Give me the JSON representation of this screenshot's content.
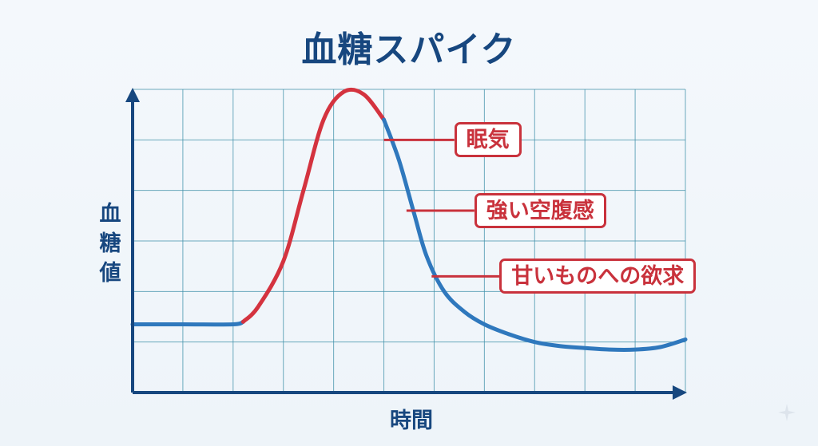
{
  "chart_data": {
    "type": "line",
    "title": "血糖スパイク",
    "ylabel": "血糖値",
    "xlabel": "時間",
    "grid": true,
    "axis_ticks": false,
    "series": [
      {
        "x": [
          0,
          1,
          2,
          2.2,
          2.5,
          3,
          3.4,
          3.8,
          4.2,
          4.6,
          5,
          5.3,
          5.6,
          5.85,
          6.2,
          6.6,
          7,
          7.5,
          8,
          8.5,
          9,
          9.5,
          10,
          10.5,
          11
        ],
        "y": [
          1.35,
          1.35,
          1.35,
          1.4,
          1.7,
          2.6,
          4.0,
          5.4,
          5.95,
          5.9,
          5.4,
          4.6,
          3.55,
          2.7,
          2.0,
          1.6,
          1.35,
          1.15,
          1.0,
          0.92,
          0.88,
          0.85,
          0.85,
          0.9,
          1.05
        ],
        "segments": [
          {
            "from_x": 0,
            "to_x": 2.2,
            "color": "#2f78bd"
          },
          {
            "from_x": 2.2,
            "to_x": 5.0,
            "color": "#d4333f"
          },
          {
            "from_x": 5.0,
            "to_x": 11,
            "color": "#2f78bd"
          }
        ]
      }
    ],
    "xlim": [
      0,
      11
    ],
    "ylim": [
      0,
      6
    ],
    "annotations": [
      {
        "text": "眠気",
        "x": 6.4,
        "y": 5.0
      },
      {
        "text": "強い空腹感",
        "x": 6.8,
        "y": 3.6
      },
      {
        "text": "甘いものへの欲求",
        "x": 7.3,
        "y": 2.3
      }
    ],
    "annotation_anchors": [
      {
        "x": 5.0,
        "y": 5.0
      },
      {
        "x": 5.45,
        "y": 3.6
      },
      {
        "x": 5.95,
        "y": 2.3
      }
    ],
    "colors": {
      "axis": "#17477f",
      "grid": "#3d8fa8",
      "rise": "#d4333f",
      "baseline": "#2f78bd",
      "callout": "#c9323c"
    }
  }
}
